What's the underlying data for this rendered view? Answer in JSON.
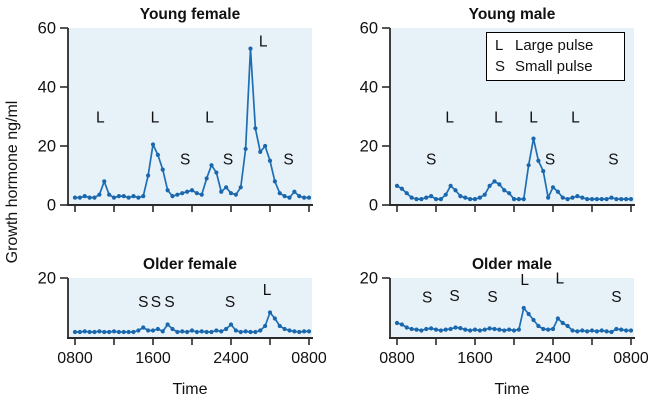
{
  "figure": {
    "ylabel": "Growth hormone ng/ml",
    "xlabel": "Time",
    "legend": {
      "items": [
        {
          "symbol": "L",
          "label": "Large pulse"
        },
        {
          "symbol": "S",
          "label": "Small pulse"
        }
      ]
    }
  },
  "colors": {
    "line": "#1d6fb4",
    "marker": "#1a67ad",
    "plot_bg": "#e7f1f8",
    "axis": "#2b2b2b",
    "text": "#111111",
    "legend_bg": "#ffffff",
    "legend_border": "#000000"
  },
  "chart_data": [
    {
      "type": "line",
      "title": "Young female",
      "position": "top-left",
      "ylim": [
        0,
        60
      ],
      "yticks": [
        0,
        20,
        40,
        60
      ],
      "x_range_hours": [
        0,
        24
      ],
      "x_step_hours": 0.5,
      "xtick_labels": [
        "0800",
        "",
        "1600",
        "",
        "2400",
        "",
        "0800"
      ],
      "xtick_labels_visible": false,
      "values": [
        2.5,
        2.5,
        3,
        2.5,
        2.5,
        3.5,
        8,
        3.5,
        2.5,
        3,
        3,
        2.5,
        3,
        2.5,
        3,
        10,
        20.5,
        17,
        12,
        5,
        3,
        3.5,
        4,
        4.5,
        5,
        4,
        3.5,
        9,
        13.5,
        11,
        4.5,
        6,
        4,
        3.5,
        6,
        19,
        53,
        26,
        18,
        20,
        15,
        8,
        4,
        3,
        2.5,
        4.5,
        3,
        2.5,
        2.5
      ],
      "annotations": [
        {
          "label": "L",
          "t": 2.6,
          "v": 29.7
        },
        {
          "label": "L",
          "t": 8.2,
          "v": 29.7
        },
        {
          "label": "S",
          "t": 11.3,
          "v": 15.5
        },
        {
          "label": "L",
          "t": 13.8,
          "v": 29.7
        },
        {
          "label": "S",
          "t": 15.7,
          "v": 15.5
        },
        {
          "label": "L",
          "t": 19.3,
          "v": 55.5
        },
        {
          "label": "S",
          "t": 21.9,
          "v": 15.5
        }
      ]
    },
    {
      "type": "line",
      "title": "Young male",
      "position": "top-right",
      "ylim": [
        0,
        60
      ],
      "yticks": [
        0,
        20,
        40,
        60
      ],
      "x_range_hours": [
        0,
        24
      ],
      "x_step_hours": 0.5,
      "xtick_labels": [
        "0800",
        "",
        "1600",
        "",
        "2400",
        "",
        "0800"
      ],
      "xtick_labels_visible": false,
      "values": [
        6.5,
        5.5,
        4,
        2.5,
        2,
        2,
        2.5,
        3,
        2,
        2,
        3.5,
        6.5,
        5,
        3,
        2.5,
        2,
        2,
        2.5,
        3.5,
        6.5,
        8,
        7,
        5,
        4,
        2,
        2,
        2,
        13.5,
        22.5,
        15,
        11.5,
        2.5,
        6,
        4.5,
        2.5,
        2,
        2.5,
        3,
        2.5,
        2,
        2,
        2,
        2,
        2,
        2.5,
        2,
        2,
        2,
        2
      ],
      "annotations": [
        {
          "label": "S",
          "t": 3.5,
          "v": 15.5
        },
        {
          "label": "L",
          "t": 5.4,
          "v": 29.7
        },
        {
          "label": "L",
          "t": 10.4,
          "v": 29.7
        },
        {
          "label": "L",
          "t": 14.0,
          "v": 29.7
        },
        {
          "label": "S",
          "t": 15.7,
          "v": 15.5
        },
        {
          "label": "L",
          "t": 18.3,
          "v": 29.7
        },
        {
          "label": "S",
          "t": 22.2,
          "v": 15.5
        }
      ]
    },
    {
      "type": "line",
      "title": "Older female",
      "position": "bottom-left",
      "ylim": [
        0,
        20
      ],
      "yticks": [
        20
      ],
      "x_range_hours": [
        0,
        24
      ],
      "x_step_hours": 0.5,
      "xtick_labels": [
        "0800",
        "",
        "1600",
        "",
        "2400",
        "",
        "0800"
      ],
      "xtick_labels_visible": true,
      "values": [
        2,
        2,
        2.2,
        2,
        2,
        2.2,
        2,
        2,
        2.2,
        2,
        2,
        2,
        2,
        2.5,
        3.5,
        2.5,
        2.5,
        3,
        2.2,
        4.5,
        3,
        2,
        2.2,
        2,
        2.5,
        2,
        2.2,
        2,
        2,
        2.5,
        2.2,
        3,
        4.5,
        2.5,
        2,
        2.2,
        2,
        2,
        2.5,
        4,
        8.5,
        6.5,
        4,
        3,
        2.5,
        2.2,
        2,
        2.2,
        2.2
      ],
      "annotations": [
        {
          "label": "S",
          "t": 7.0,
          "v": 12
        },
        {
          "label": "S",
          "t": 8.3,
          "v": 12
        },
        {
          "label": "S",
          "t": 9.7,
          "v": 12
        },
        {
          "label": "S",
          "t": 15.9,
          "v": 12
        },
        {
          "label": "L",
          "t": 19.7,
          "v": 16
        }
      ]
    },
    {
      "type": "line",
      "title": "Older male",
      "position": "bottom-right",
      "ylim": [
        0,
        20
      ],
      "yticks": [
        20
      ],
      "x_range_hours": [
        0,
        24
      ],
      "x_step_hours": 0.5,
      "xtick_labels": [
        "0800",
        "",
        "1600",
        "",
        "2400",
        "",
        "0800"
      ],
      "xtick_labels_visible": true,
      "values": [
        5,
        4.5,
        3.5,
        3,
        2.8,
        2.5,
        3,
        3.2,
        2.8,
        2.5,
        2.8,
        3,
        3.5,
        3.3,
        2.8,
        2.5,
        2.8,
        2.5,
        2.8,
        3.2,
        3,
        2.8,
        2.5,
        2.8,
        2.5,
        2.8,
        10,
        8,
        6,
        4,
        3,
        2.8,
        3,
        6.5,
        5,
        4,
        2.5,
        2.2,
        2.5,
        2.2,
        2.5,
        2.2,
        2.5,
        2.2,
        2,
        3,
        2.8,
        2.5,
        2.5
      ],
      "annotations": [
        {
          "label": "S",
          "t": 3.1,
          "v": 13.5
        },
        {
          "label": "S",
          "t": 5.9,
          "v": 14
        },
        {
          "label": "S",
          "t": 9.8,
          "v": 13.7
        },
        {
          "label": "L",
          "t": 13.1,
          "v": 19.3
        },
        {
          "label": "L",
          "t": 16.7,
          "v": 19.8
        },
        {
          "label": "S",
          "t": 22.5,
          "v": 13.7
        }
      ]
    }
  ]
}
